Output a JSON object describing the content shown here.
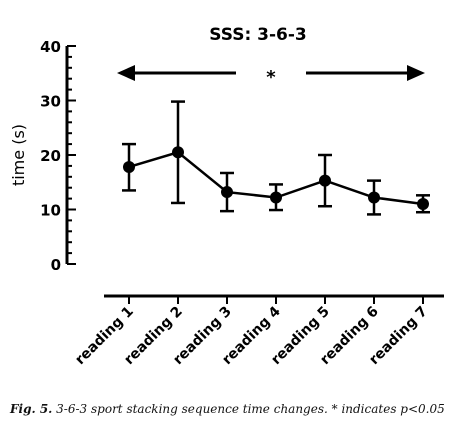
{
  "chart_data": {
    "type": "line",
    "title": "SSS: 3-6-3",
    "ylabel": "time (s)",
    "xlabel": "",
    "ylim": [
      0,
      40
    ],
    "yticks": [
      0,
      10,
      20,
      30,
      40
    ],
    "grid": false,
    "categories": [
      "reading 1",
      "reading 2",
      "reading 3",
      "reading 4",
      "reading 5",
      "reading 6",
      "reading 7"
    ],
    "series": [
      {
        "values": [
          17.8,
          20.5,
          13.2,
          12.2,
          15.3,
          12.2,
          11.0
        ],
        "error_low": [
          13.5,
          11.2,
          9.7,
          9.9,
          10.6,
          9.1,
          9.5
        ],
        "error_high": [
          22.0,
          29.8,
          16.7,
          14.6,
          20.0,
          15.3,
          12.6
        ]
      }
    ],
    "annotation": {
      "text": "*",
      "from_category": "reading 1",
      "to_category": "reading 7"
    },
    "color": "#000000"
  },
  "caption": {
    "lead": "Fig. 5.",
    "text": " 3-6-3 sport stacking sequence time changes. * indicates p<0.05"
  }
}
